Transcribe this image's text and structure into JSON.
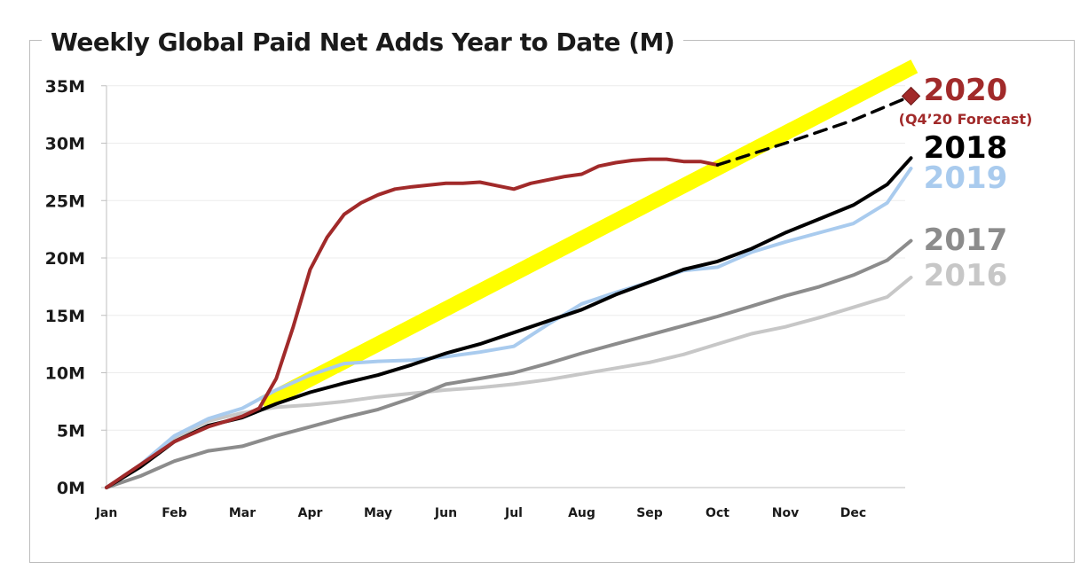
{
  "chart_data": {
    "type": "line",
    "title": "Weekly Global Paid Net Adds Year to Date (M)",
    "xlabel": "",
    "ylabel": "",
    "x_ticks": [
      "Jan",
      "Feb",
      "Mar",
      "Apr",
      "May",
      "Jun",
      "Jul",
      "Aug",
      "Sep",
      "Oct",
      "Nov",
      "Dec"
    ],
    "y_ticks": [
      "0M",
      "5M",
      "10M",
      "15M",
      "20M",
      "25M",
      "30M",
      "35M"
    ],
    "ylim": [
      0,
      35
    ],
    "x_unit": "month of year",
    "grid": "horizontal",
    "series": [
      {
        "name": "2016",
        "color": "#c7c7c7",
        "x": [
          0,
          0.5,
          1,
          1.5,
          2,
          2.5,
          3,
          3.5,
          4,
          4.5,
          5,
          5.5,
          6,
          6.5,
          7,
          7.5,
          8,
          8.5,
          9,
          9.5,
          10,
          10.5,
          11,
          11.5,
          11.85
        ],
        "values": [
          0,
          2,
          4.3,
          5.8,
          6.5,
          7,
          7.2,
          7.5,
          7.9,
          8.2,
          8.5,
          8.7,
          9,
          9.4,
          9.9,
          10.4,
          10.9,
          11.6,
          12.5,
          13.4,
          14,
          14.8,
          15.7,
          16.6,
          18.3
        ]
      },
      {
        "name": "2017",
        "color": "#8c8c8c",
        "x": [
          0,
          0.5,
          1,
          1.5,
          2,
          2.5,
          3,
          3.5,
          4,
          4.5,
          5,
          5.5,
          6,
          6.5,
          7,
          7.5,
          8,
          8.5,
          9,
          9.5,
          10,
          10.5,
          11,
          11.5,
          11.85
        ],
        "values": [
          0,
          1,
          2.3,
          3.2,
          3.6,
          4.5,
          5.3,
          6.1,
          6.8,
          7.8,
          9,
          9.5,
          10,
          10.8,
          11.7,
          12.5,
          13.3,
          14.1,
          14.9,
          15.8,
          16.7,
          17.5,
          18.5,
          19.8,
          21.5
        ]
      },
      {
        "name": "2019",
        "color": "#a9cbee",
        "x": [
          0,
          0.5,
          1,
          1.5,
          2,
          2.5,
          3,
          3.5,
          4,
          4.5,
          5,
          5.5,
          6,
          6.5,
          7,
          7.5,
          8,
          8.5,
          9,
          9.5,
          10,
          10.5,
          11,
          11.5,
          11.85
        ],
        "values": [
          0,
          2,
          4.5,
          6,
          6.9,
          8.5,
          9.8,
          10.8,
          11,
          11.1,
          11.4,
          11.8,
          12.3,
          14.2,
          16,
          17,
          17.9,
          18.9,
          19.2,
          20.5,
          21.4,
          22.2,
          23,
          24.8,
          27.8
        ]
      },
      {
        "name": "2018",
        "color": "#000000",
        "x": [
          0,
          0.5,
          1,
          1.5,
          2,
          2.5,
          3,
          3.5,
          4,
          4.5,
          5,
          5.5,
          6,
          6.5,
          7,
          7.5,
          8,
          8.5,
          9,
          9.5,
          10,
          10.5,
          11,
          11.5,
          11.85
        ],
        "values": [
          0,
          1.8,
          4,
          5.4,
          6.1,
          7.3,
          8.3,
          9.1,
          9.8,
          10.7,
          11.7,
          12.5,
          13.5,
          14.5,
          15.5,
          16.8,
          17.9,
          19,
          19.7,
          20.8,
          22.2,
          23.4,
          24.6,
          26.4,
          28.7
        ]
      },
      {
        "name": "2020",
        "color": "#a12a2a",
        "x": [
          0,
          0.25,
          0.5,
          1,
          1.5,
          2,
          2.25,
          2.5,
          2.75,
          3,
          3.25,
          3.5,
          3.75,
          4,
          4.25,
          4.5,
          5,
          5.25,
          5.5,
          5.75,
          6,
          6.25,
          6.5,
          6.75,
          7,
          7.25,
          7.5,
          7.75,
          8,
          8.25,
          8.5,
          8.75,
          9
        ],
        "values": [
          0,
          1,
          2,
          4,
          5.3,
          6.2,
          6.9,
          9.5,
          14,
          19,
          21.8,
          23.8,
          24.8,
          25.5,
          26,
          26.2,
          26.5,
          26.5,
          26.6,
          26.3,
          26,
          26.5,
          26.8,
          27.1,
          27.3,
          28,
          28.3,
          28.5,
          28.6,
          28.6,
          28.4,
          28.4,
          28.1
        ]
      },
      {
        "name": "2020 (Q4'20 Forecast)",
        "color": "#000000",
        "dashed": true,
        "x": [
          9,
          10,
          11,
          11.85
        ],
        "values": [
          28.1,
          30,
          32,
          34.1
        ]
      }
    ],
    "highlight_band": {
      "color": "#ffff00",
      "x": [
        2.3,
        11.9
      ],
      "values": [
        7.3,
        36.7
      ]
    },
    "forecast_marker": {
      "x": 11.85,
      "value": 34.1,
      "color": "#a12a2a"
    },
    "legend_labels": [
      {
        "text": "2020",
        "color": "#a12a2a"
      },
      {
        "text": "(Q4’20 Forecast)",
        "color": "#a12a2a"
      },
      {
        "text": "2018",
        "color": "#000000"
      },
      {
        "text": "2019",
        "color": "#a9cbee"
      },
      {
        "text": "2017",
        "color": "#8c8c8c"
      },
      {
        "text": "2016",
        "color": "#c7c7c7"
      }
    ]
  }
}
